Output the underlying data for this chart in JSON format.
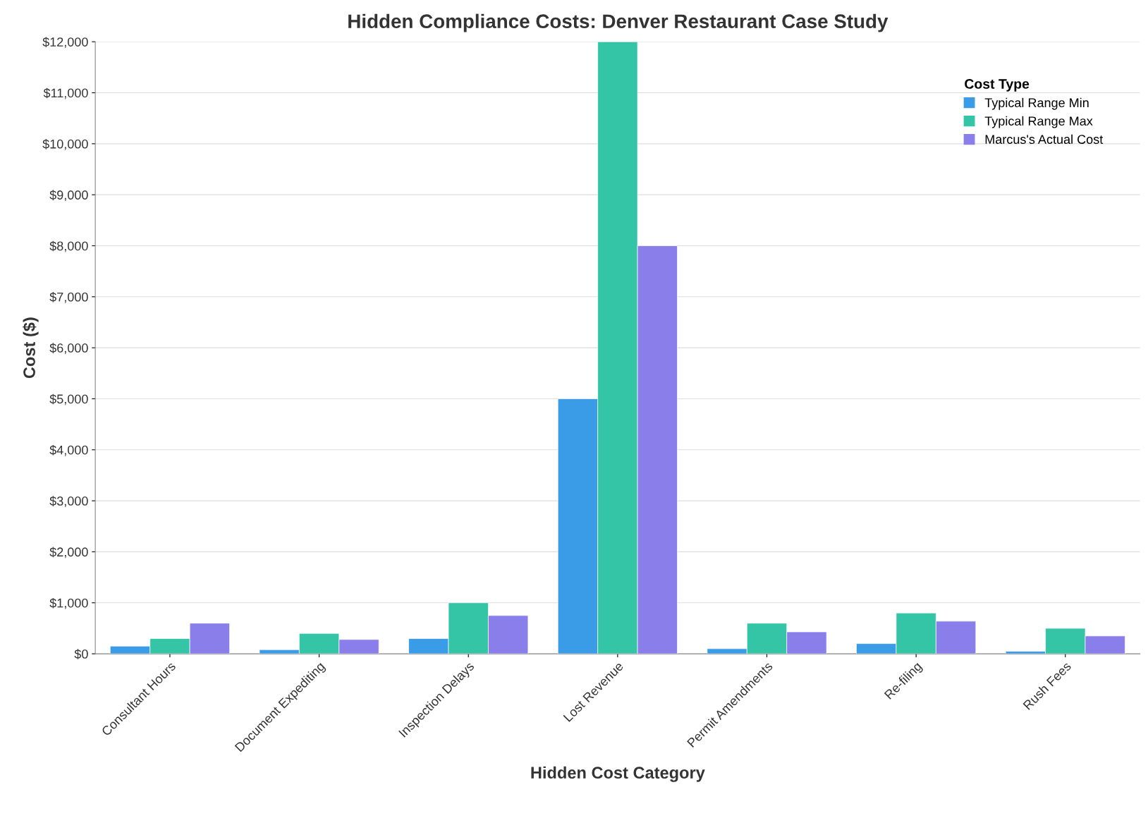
{
  "chart_data": {
    "type": "bar",
    "title": "Hidden Compliance Costs: Denver Restaurant Case Study",
    "xlabel": "Hidden Cost Category",
    "ylabel": "Cost ($)",
    "legend_title": "Cost Type",
    "categories": [
      "Consultant Hours",
      "Document Expediting",
      "Inspection Delays",
      "Lost Revenue",
      "Permit Amendments",
      "Re-filing",
      "Rush Fees"
    ],
    "series": [
      {
        "name": "Typical Range Min",
        "color": "#3a9be6",
        "values": [
          150,
          80,
          300,
          5000,
          100,
          200,
          50
        ]
      },
      {
        "name": "Typical Range Max",
        "color": "#33c5a6",
        "values": [
          300,
          400,
          1000,
          12000,
          600,
          800,
          500
        ]
      },
      {
        "name": "Marcus's Actual Cost",
        "color": "#8a7fea",
        "values": [
          600,
          280,
          750,
          8000,
          430,
          640,
          350
        ]
      }
    ],
    "ylim": [
      0,
      12000
    ],
    "yticks": [
      {
        "value": 0,
        "label": "$0"
      },
      {
        "value": 1000,
        "label": "$1,000"
      },
      {
        "value": 2000,
        "label": "$2,000"
      },
      {
        "value": 3000,
        "label": "$3,000"
      },
      {
        "value": 4000,
        "label": "$4,000"
      },
      {
        "value": 5000,
        "label": "$5,000"
      },
      {
        "value": 6000,
        "label": "$6,000"
      },
      {
        "value": 7000,
        "label": "$7,000"
      },
      {
        "value": 8000,
        "label": "$8,000"
      },
      {
        "value": 9000,
        "label": "$9,000"
      },
      {
        "value": 10000,
        "label": "$10,000"
      },
      {
        "value": 11000,
        "label": "$11,000"
      },
      {
        "value": 12000,
        "label": "$12,000"
      }
    ],
    "grid": "y",
    "legend": "top right"
  }
}
